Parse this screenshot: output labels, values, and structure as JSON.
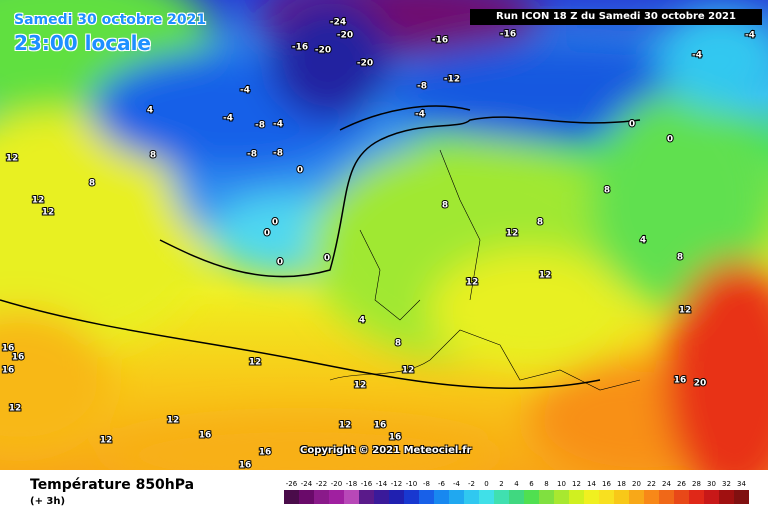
{
  "header": {
    "date": "Samedi 30 octobre 2021",
    "time": "23:00 locale",
    "run": "Run ICON 18 Z du Samedi 30 octobre 2021"
  },
  "copyright": "Copyright © 2021 Meteociel.fr",
  "footer": {
    "title": "Température 850hPa",
    "subtitle": "(+ 3h)"
  },
  "map": {
    "labels": [
      "-16",
      "-20",
      "-20",
      "-24",
      "-20",
      "-16",
      "-16",
      "-12",
      "-8",
      "-4",
      "-8",
      "-4",
      "-8",
      "-8",
      "-4",
      "-4",
      "0",
      "0",
      "0",
      "0",
      "0",
      "0",
      "0",
      "-4",
      "-4",
      "4",
      "8",
      "12",
      "12",
      "12",
      "8",
      "4",
      "8",
      "8",
      "12",
      "8",
      "12",
      "12",
      "8",
      "4",
      "8",
      "12",
      "16",
      "20",
      "16",
      "16",
      "16",
      "12",
      "12",
      "12",
      "12",
      "12",
      "16",
      "16",
      "16",
      "16",
      "12",
      "16",
      "12"
    ]
  },
  "legend": {
    "values": [
      -26,
      -24,
      -22,
      -20,
      -18,
      -16,
      -14,
      -12,
      -10,
      -8,
      -6,
      -4,
      -2,
      0,
      2,
      4,
      6,
      8,
      10,
      12,
      14,
      16,
      18,
      20,
      22,
      24,
      26,
      28,
      30,
      32,
      34
    ],
    "colors": [
      "#4a0c4a",
      "#6a0a6a",
      "#8a1a8a",
      "#a020a0",
      "#b848b8",
      "#5a1a8a",
      "#3a1a9a",
      "#2020b0",
      "#1838d0",
      "#1860e8",
      "#1888f0",
      "#20a8f0",
      "#30c8f0",
      "#40e0e8",
      "#40e0b0",
      "#40d880",
      "#50e050",
      "#80e040",
      "#a8e830",
      "#d0f020",
      "#f0f020",
      "#f8e020",
      "#f8c818",
      "#f8a818",
      "#f88818",
      "#f06818",
      "#e84818",
      "#e02818",
      "#c81818",
      "#a01010",
      "#801010"
    ]
  }
}
